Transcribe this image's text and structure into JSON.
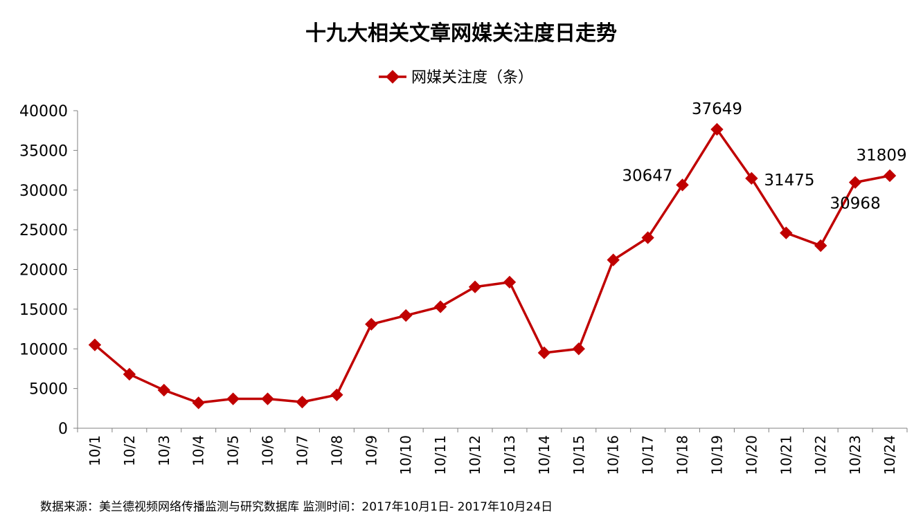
{
  "chart_data": {
    "type": "line",
    "title": "十九大相关文章网媒关注度日走势",
    "categories": [
      "10/1",
      "10/2",
      "10/3",
      "10/4",
      "10/5",
      "10/6",
      "10/7",
      "10/8",
      "10/9",
      "10/10",
      "10/11",
      "10/12",
      "10/13",
      "10/14",
      "10/15",
      "10/16",
      "10/17",
      "10/18",
      "10/19",
      "10/20",
      "10/21",
      "10/22",
      "10/23",
      "10/24"
    ],
    "series": [
      {
        "name": "网媒关注度（条）",
        "color": "#c00000",
        "values": [
          10500,
          6800,
          4800,
          3200,
          3700,
          3700,
          3300,
          4200,
          13100,
          14200,
          15300,
          17800,
          18400,
          9500,
          10000,
          21200,
          24000,
          30647,
          37649,
          31475,
          24600,
          23000,
          30968,
          31809
        ]
      }
    ],
    "data_labels": [
      {
        "index": 17,
        "text": "30647",
        "pos": "left"
      },
      {
        "index": 18,
        "text": "37649",
        "pos": "above"
      },
      {
        "index": 19,
        "text": "31475",
        "pos": "right"
      },
      {
        "index": 22,
        "text": "30968",
        "pos": "below"
      },
      {
        "index": 23,
        "text": "31809",
        "pos": "above"
      }
    ],
    "ylim": [
      0,
      40000
    ],
    "yticks": [
      0,
      5000,
      10000,
      15000,
      20000,
      25000,
      30000,
      35000,
      40000
    ],
    "legend_position": "top-center",
    "grid": false
  },
  "source_note": "数据来源：美兰德视频网络传播监测与研究数据库    监测时间：2017年10月1日- 2017年10月24日"
}
